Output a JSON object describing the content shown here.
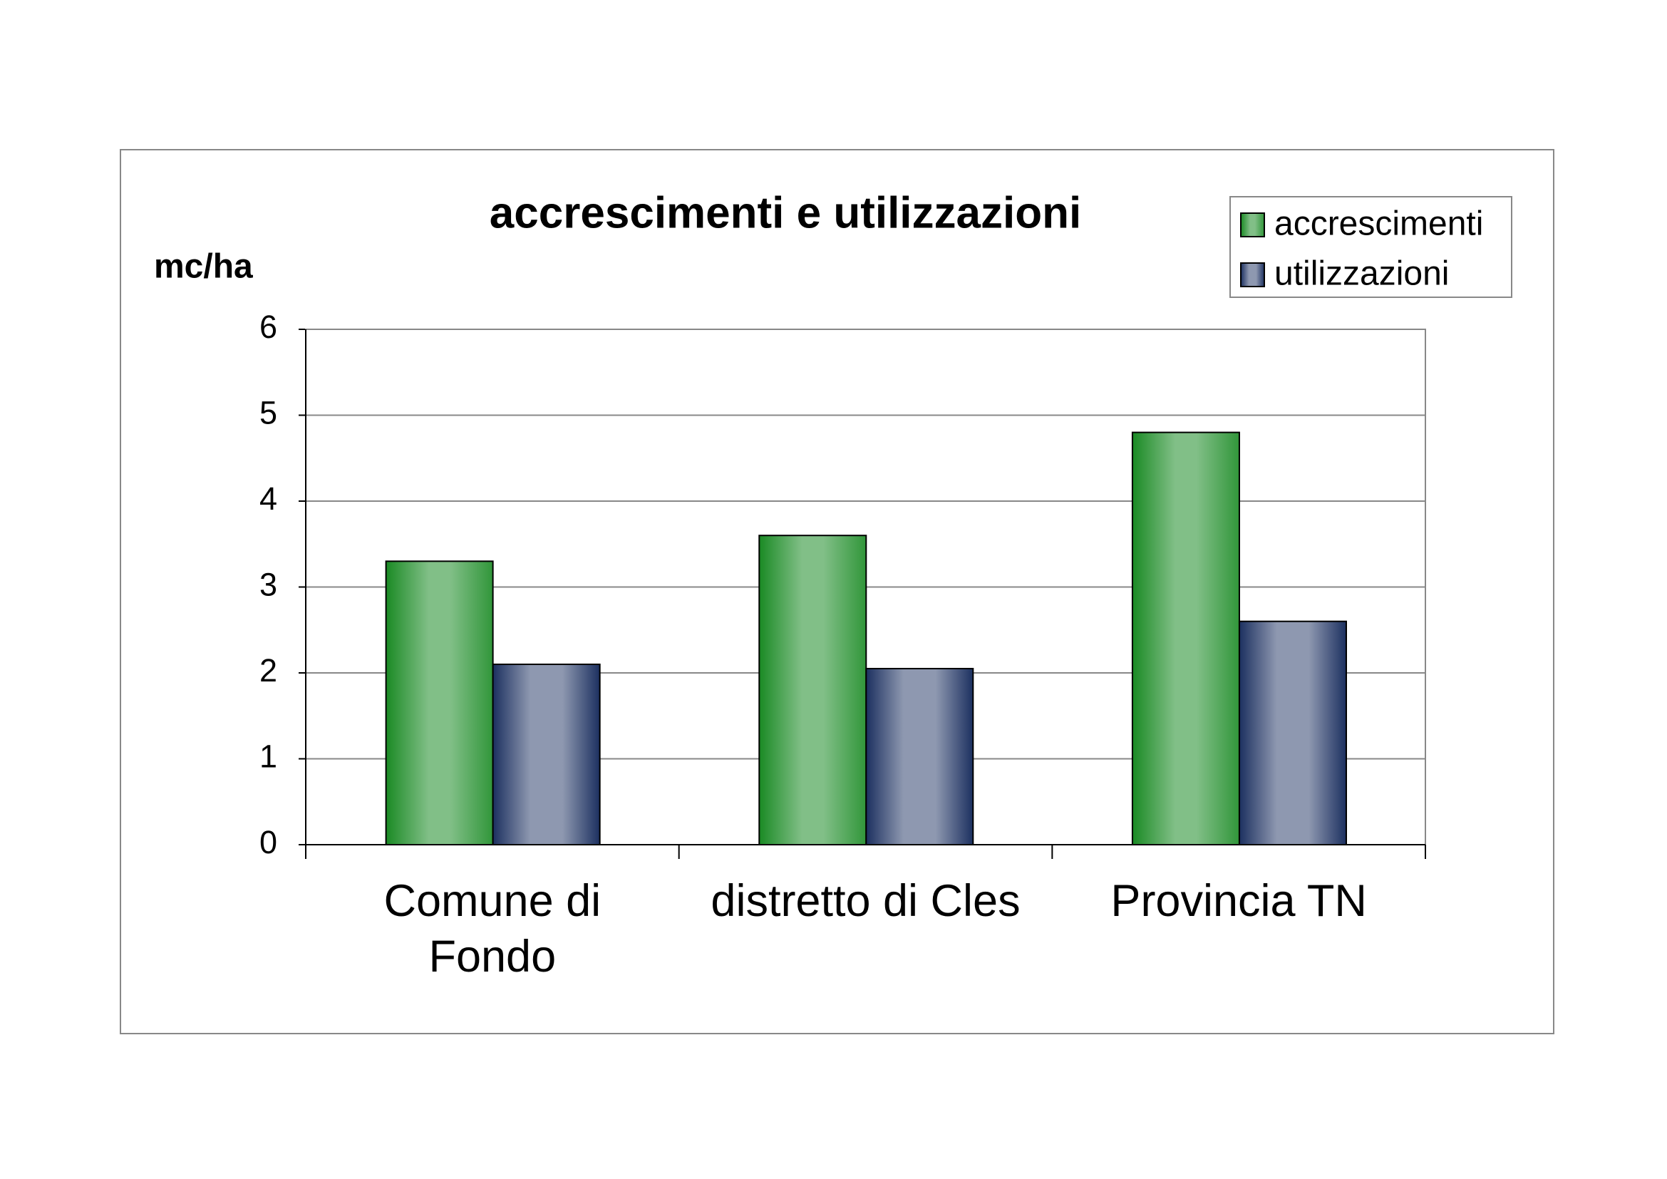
{
  "chart_data": {
    "type": "bar",
    "title": "accrescimenti e utilizzazioni",
    "y_label": "mc/ha",
    "categories": [
      "Comune di Fondo",
      "distretto di Cles",
      "Provincia TN"
    ],
    "series": [
      {
        "name": "accrescimenti",
        "color": "#1a8a24",
        "values": [
          3.3,
          3.6,
          4.8
        ]
      },
      {
        "name": "utilizzazioni",
        "color": "#1c3060",
        "values": [
          2.1,
          2.05,
          2.6
        ]
      }
    ],
    "ylim": [
      0,
      6
    ],
    "yticks": [
      0,
      1,
      2,
      3,
      4,
      5,
      6
    ],
    "grid": true,
    "legend": "top-right"
  }
}
